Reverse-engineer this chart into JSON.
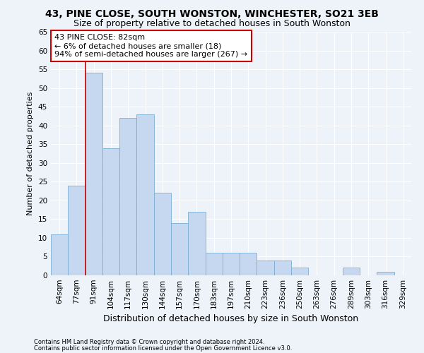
{
  "title1": "43, PINE CLOSE, SOUTH WONSTON, WINCHESTER, SO21 3EB",
  "title2": "Size of property relative to detached houses in South Wonston",
  "xlabel": "Distribution of detached houses by size in South Wonston",
  "ylabel": "Number of detached properties",
  "categories": [
    "64sqm",
    "77sqm",
    "91sqm",
    "104sqm",
    "117sqm",
    "130sqm",
    "144sqm",
    "157sqm",
    "170sqm",
    "183sqm",
    "197sqm",
    "210sqm",
    "223sqm",
    "236sqm",
    "250sqm",
    "263sqm",
    "276sqm",
    "289sqm",
    "303sqm",
    "316sqm",
    "329sqm"
  ],
  "values": [
    11,
    24,
    54,
    34,
    42,
    43,
    22,
    14,
    17,
    6,
    6,
    6,
    4,
    4,
    2,
    0,
    0,
    2,
    0,
    1,
    0
  ],
  "bar_color": "#c5d8f0",
  "bar_edge_color": "#7aafd4",
  "annotation_text_line1": "43 PINE CLOSE: 82sqm",
  "annotation_text_line2": "← 6% of detached houses are smaller (18)",
  "annotation_text_line3": "94% of semi-detached houses are larger (267) →",
  "annotation_box_color": "#ffffff",
  "annotation_box_edge": "#cc0000",
  "vline_color": "#cc0000",
  "footer1": "Contains HM Land Registry data © Crown copyright and database right 2024.",
  "footer2": "Contains public sector information licensed under the Open Government Licence v3.0.",
  "ylim": [
    0,
    65
  ],
  "yticks": [
    0,
    5,
    10,
    15,
    20,
    25,
    30,
    35,
    40,
    45,
    50,
    55,
    60,
    65
  ],
  "bg_color": "#eef3fa",
  "grid_color": "#ffffff",
  "title1_fontsize": 10,
  "title2_fontsize": 9,
  "xlabel_fontsize": 9,
  "ylabel_fontsize": 8,
  "tick_fontsize": 7.5,
  "annot_fontsize": 8,
  "footer_fontsize": 6
}
